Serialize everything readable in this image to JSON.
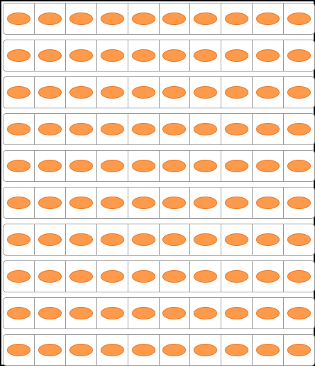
{
  "grid": {
    "rows": 10,
    "columns": 10,
    "item_icon": "orange-oval-icon",
    "item_fill_color": "#fd9a4b",
    "item_stroke_color": "#e8782a",
    "cell_border_color": "#9a9a9a",
    "frame_color": "#000000",
    "total_items": 100
  }
}
